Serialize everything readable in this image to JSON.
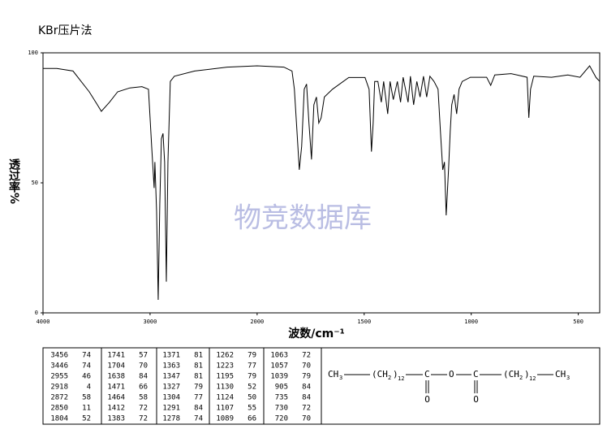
{
  "chart_data": {
    "type": "line",
    "title": "KBr压片法",
    "x_label": "波数/cm⁻¹",
    "y_label": "透过率%",
    "watermark": "物竞数据库",
    "x_scale": "piecewise-by-ticks",
    "xlim": [
      4000,
      400
    ],
    "xticks": [
      4000,
      3000,
      2000,
      1500,
      1000,
      500
    ],
    "ylim": [
      0,
      100
    ],
    "yticks": [
      0,
      50,
      100
    ],
    "series": [
      {
        "color": "#000000",
        "x": [
          4000,
          3871,
          3720,
          3644,
          3568,
          3492,
          3455,
          3379,
          3303,
          3189,
          3076,
          3015,
          2985,
          2962,
          2955,
          2939,
          2924,
          2909,
          2894,
          2879,
          2864,
          2848,
          2833,
          2811,
          2773,
          2583,
          2280,
          2000,
          1875,
          1837,
          1826,
          1814,
          1803,
          1792,
          1780,
          1769,
          1758,
          1746,
          1735,
          1723,
          1712,
          1701,
          1686,
          1648,
          1572,
          1496,
          1477,
          1466,
          1458,
          1451,
          1436,
          1420,
          1409,
          1390,
          1379,
          1364,
          1345,
          1330,
          1318,
          1295,
          1284,
          1269,
          1254,
          1239,
          1223,
          1208,
          1193,
          1174,
          1155,
          1144,
          1133,
          1125,
          1117,
          1106,
          1098,
          1091,
          1080,
          1068,
          1057,
          1042,
          1004,
          928,
          909,
          890,
          814,
          739,
          731,
          723,
          708,
          625,
          549,
          492,
          447,
          417,
          400
        ],
        "values": [
          94,
          94,
          93,
          89,
          85,
          80,
          77.5,
          81,
          85,
          86.5,
          87,
          86,
          64,
          48,
          58,
          39,
          5,
          42,
          67,
          69,
          58,
          12,
          58,
          89,
          91,
          93,
          94.5,
          95,
          94.5,
          93,
          86,
          70,
          55,
          64,
          86,
          88,
          73,
          59,
          80,
          83,
          73,
          75,
          83,
          86,
          90.5,
          90.5,
          86,
          62,
          73,
          89,
          89,
          81,
          89,
          76.5,
          89,
          82,
          89,
          81,
          90.6,
          81,
          91,
          80,
          89,
          83,
          91,
          83,
          91,
          89,
          86,
          70,
          55,
          58,
          37.5,
          55,
          70,
          80,
          84,
          76.5,
          86,
          89,
          90.6,
          90.6,
          87.5,
          91.5,
          92,
          90.6,
          75,
          86,
          91,
          90.6,
          91.5,
          90.6,
          95,
          90.5,
          89
        ]
      }
    ],
    "peaks": [
      {
        "wavenumbers": [
          3456,
          3446,
          2955,
          2918,
          2872,
          2850,
          1804
        ],
        "transmittance": [
          74,
          74,
          46,
          4,
          58,
          11,
          52
        ]
      },
      {
        "wavenumbers": [
          1741,
          1704,
          1638,
          1471,
          1464,
          1412,
          1383
        ],
        "transmittance": [
          57,
          70,
          84,
          66,
          58,
          72,
          72
        ]
      },
      {
        "wavenumbers": [
          1371,
          1363,
          1347,
          1327,
          1304,
          1291,
          1278
        ],
        "transmittance": [
          81,
          81,
          81,
          79,
          77,
          84,
          74
        ]
      },
      {
        "wavenumbers": [
          1262,
          1223,
          1195,
          1130,
          1124,
          1107,
          1089
        ],
        "transmittance": [
          79,
          77,
          79,
          52,
          50,
          55,
          66
        ]
      },
      {
        "wavenumbers": [
          1063,
          1057,
          1039,
          905,
          735,
          730,
          720
        ],
        "transmittance": [
          72,
          70,
          79,
          84,
          84,
          72,
          70
        ]
      }
    ],
    "formula": {
      "parts": [
        "CH",
        "3",
        "(CH",
        "2",
        ")",
        "12",
        "C",
        "O",
        "C",
        "(CH",
        "2",
        ")",
        "12",
        "CH",
        "3"
      ],
      "carbonyl": [
        "O",
        "O"
      ]
    }
  }
}
